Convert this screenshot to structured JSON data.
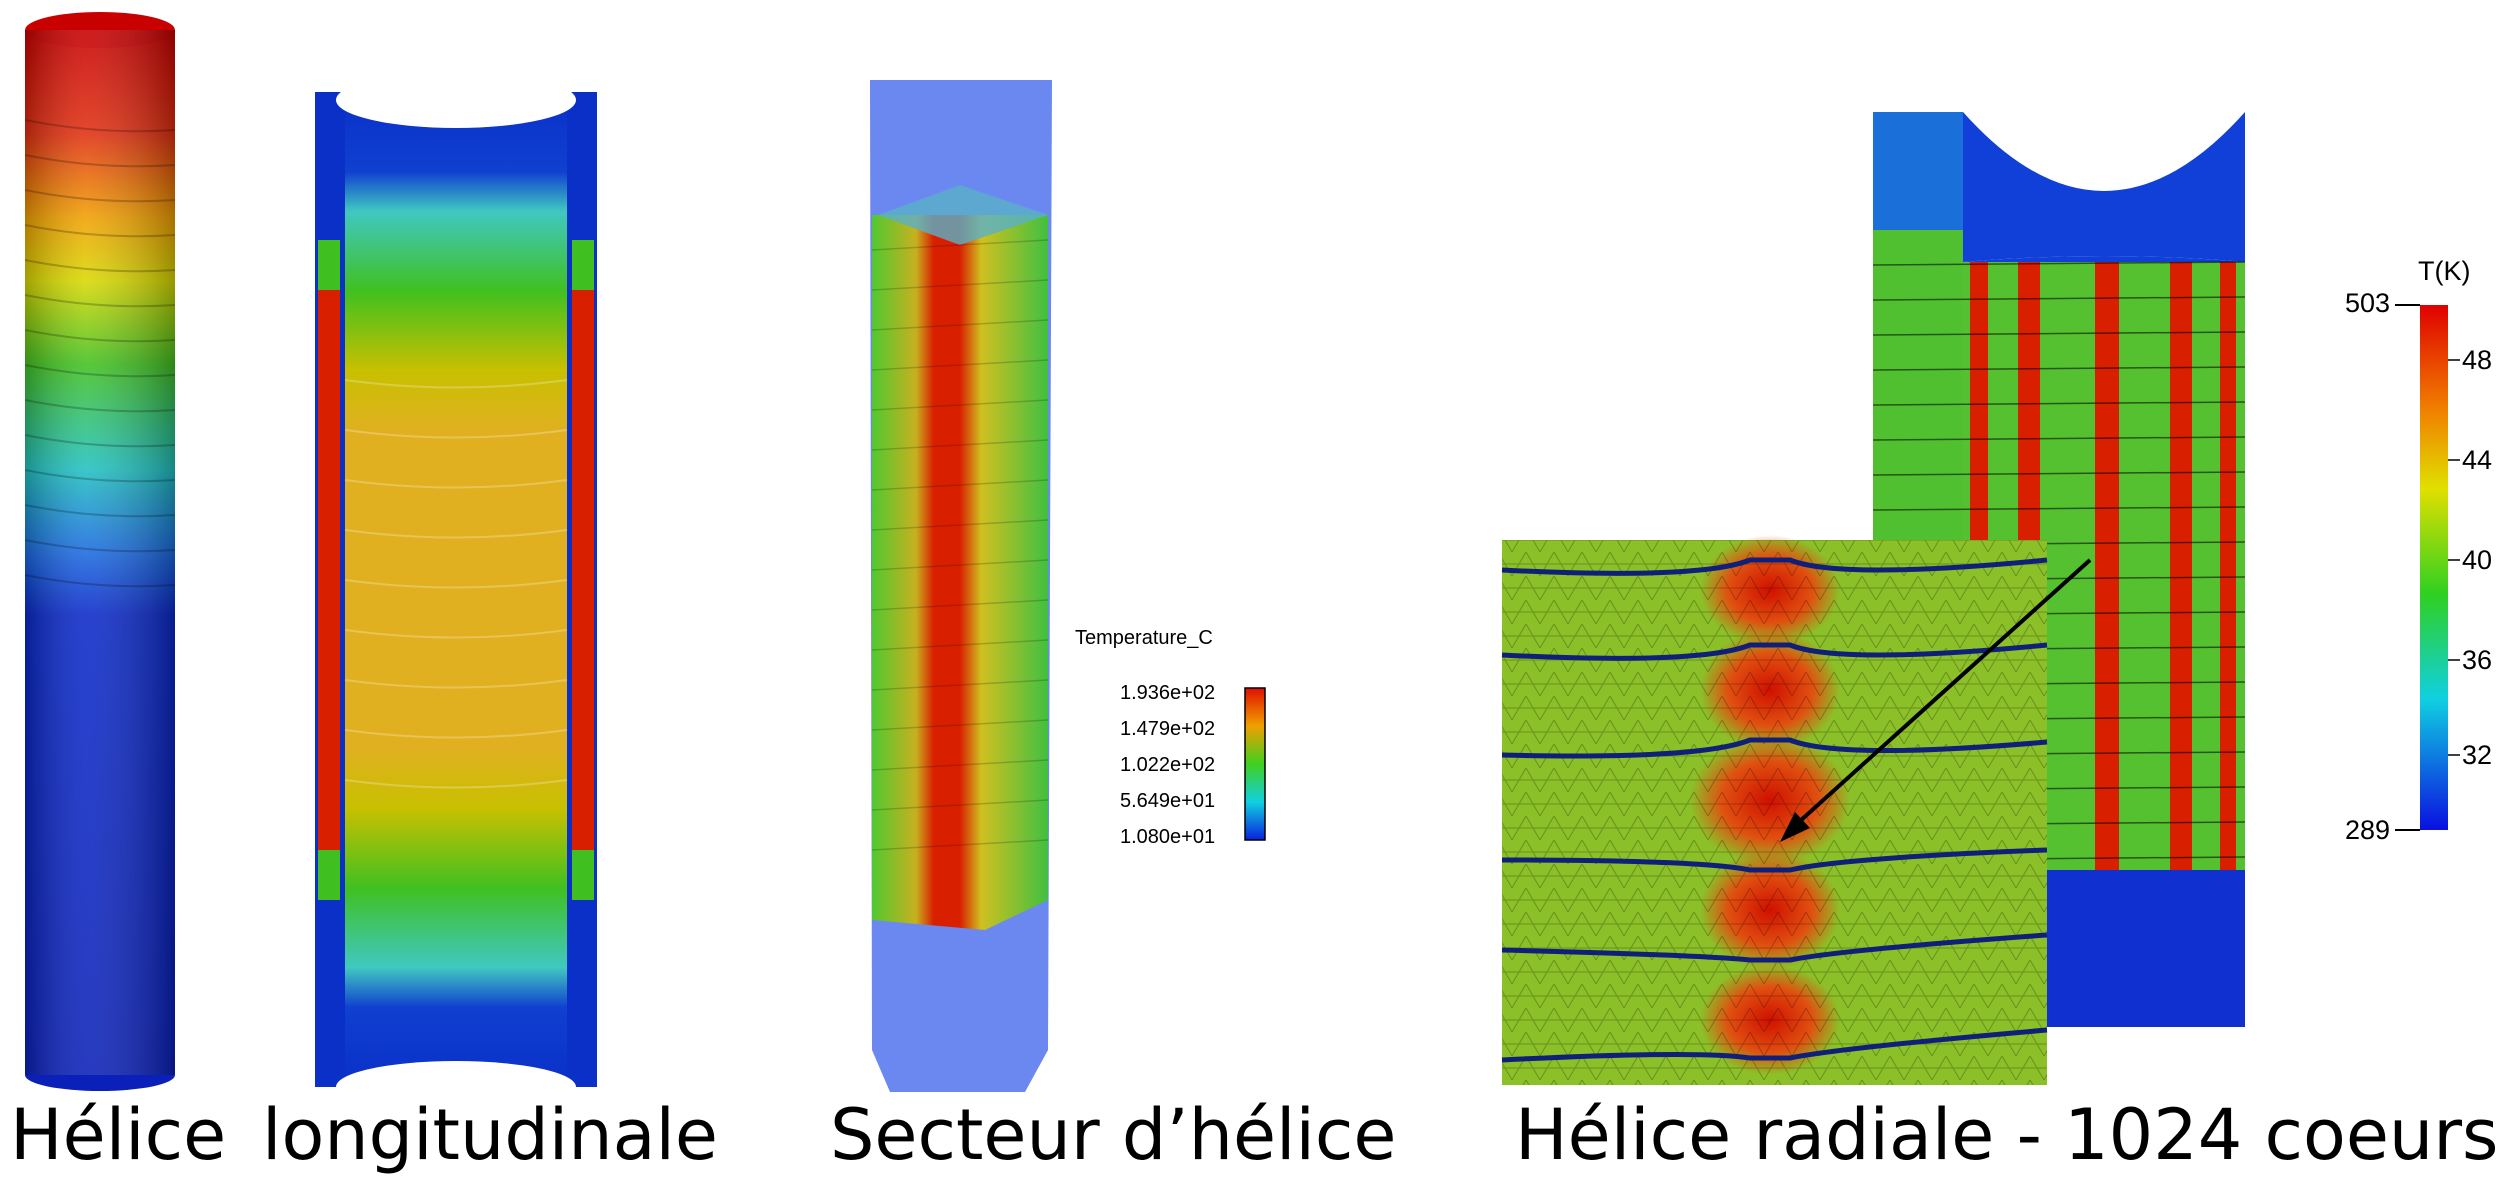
{
  "captions": {
    "helix": "Hélice",
    "longitudinal": "longitudinale",
    "sector": "Secteur d’hélice",
    "radial": "Hélice radiale - 1024 coeurs"
  },
  "legend_celsius": {
    "title": "Temperature_C",
    "ticks": [
      "1.936e+02",
      "1.479e+02",
      "1.022e+02",
      "5.649e+01",
      "1.080e+01"
    ]
  },
  "legend_kelvin": {
    "title": "T(K)",
    "max": "503",
    "min": "289",
    "ticks_partial": [
      "48",
      "44",
      "40",
      "36",
      "32"
    ]
  },
  "colors": {
    "hot": "#d40000",
    "warm": "#f0a000",
    "mid": "#40c020",
    "cool": "#20c0d0",
    "cold": "#0a28c8"
  }
}
